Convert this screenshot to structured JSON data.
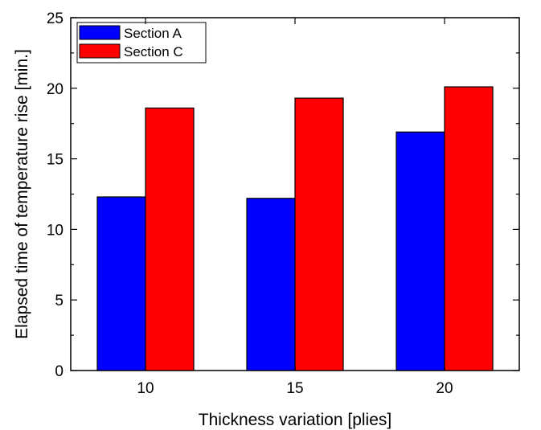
{
  "chart_data": {
    "type": "bar",
    "categories": [
      "10",
      "15",
      "20"
    ],
    "series": [
      {
        "name": "Section A",
        "values": [
          12.3,
          12.2,
          16.9
        ],
        "color": "#0000ff"
      },
      {
        "name": "Section C",
        "values": [
          18.6,
          19.3,
          20.1
        ],
        "color": "#ff0000"
      }
    ],
    "xlabel": "Thickness variation [plies]",
    "ylabel": "Elapsed time of temperature rise [min.]",
    "ylim": [
      0,
      25
    ],
    "yticks": [
      0,
      5,
      10,
      15,
      20,
      25
    ],
    "grid": false,
    "legend_position": "top-left"
  }
}
